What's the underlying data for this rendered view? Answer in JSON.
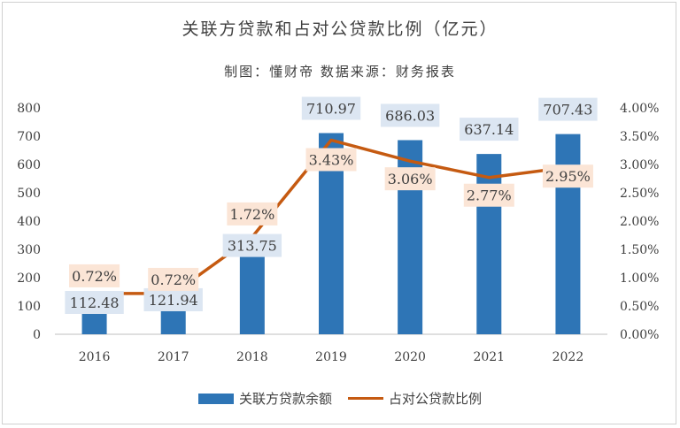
{
  "chart_data": {
    "type": "bar+line",
    "title": "关联方贷款和占对公贷款比例（亿元）",
    "subtitle": "制图：懂财帝  数据来源：财务报表",
    "categories": [
      "2016",
      "2017",
      "2018",
      "2019",
      "2020",
      "2021",
      "2022"
    ],
    "series": [
      {
        "name": "关联方贷款余额",
        "kind": "bar",
        "axis": "left",
        "values": [
          112.48,
          121.94,
          313.75,
          710.97,
          686.03,
          637.14,
          707.43
        ],
        "labels": [
          "112.48",
          "121.94",
          "313.75",
          "710.97",
          "686.03",
          "637.14",
          "707.43"
        ]
      },
      {
        "name": "占对公贷款比例",
        "kind": "line",
        "axis": "right",
        "values": [
          0.72,
          0.72,
          1.72,
          3.43,
          3.06,
          2.77,
          2.95
        ],
        "labels": [
          "0.72%",
          "0.72%",
          "1.72%",
          "3.43%",
          "3.06%",
          "2.77%",
          "2.95%"
        ]
      }
    ],
    "y_left": {
      "min": 0,
      "max": 800,
      "ticks": [
        "0",
        "100",
        "200",
        "300",
        "400",
        "500",
        "600",
        "700",
        "800"
      ]
    },
    "y_right": {
      "min": 0,
      "max": 4,
      "ticks": [
        "0.00%",
        "0.50%",
        "1.00%",
        "1.50%",
        "2.00%",
        "2.50%",
        "3.00%",
        "3.50%",
        "4.00%"
      ]
    },
    "legend": {
      "position": "bottom"
    },
    "grid": false
  },
  "colors": {
    "bar": "#2E75B6",
    "line": "#C55A11",
    "bar_label_bg": "#DCE6F2",
    "line_label_bg": "#FBE5D6",
    "text": "#404040",
    "axis": "#BFBFBF"
  }
}
